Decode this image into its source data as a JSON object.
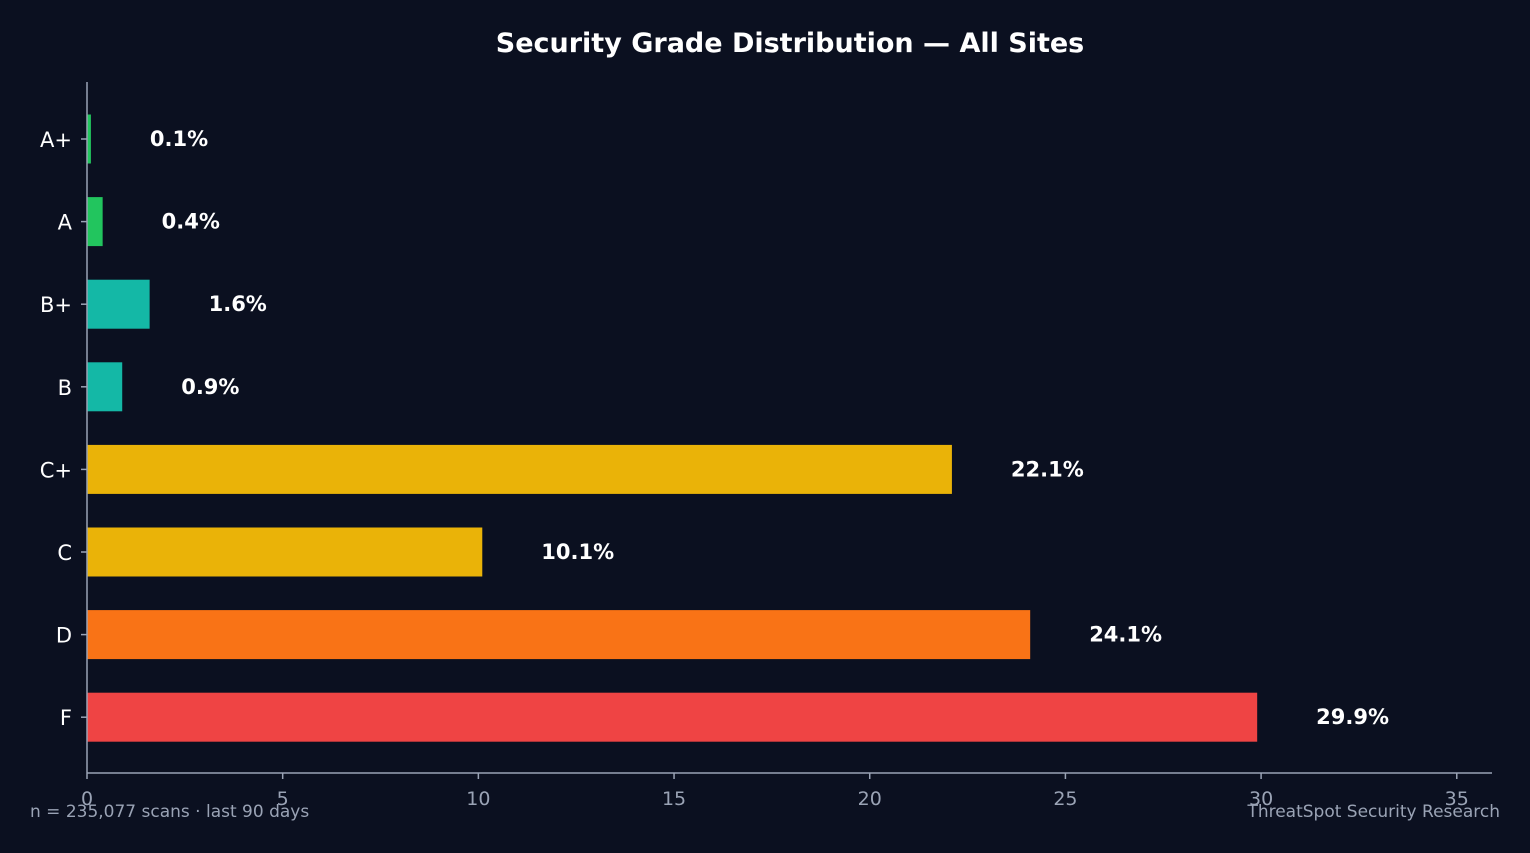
{
  "chart_data": {
    "type": "bar",
    "orientation": "horizontal",
    "title": "Security Grade Distribution — All Sites",
    "categories": [
      "A+",
      "A",
      "B+",
      "B",
      "C+",
      "C",
      "D",
      "F"
    ],
    "values": [
      0.1,
      0.4,
      1.6,
      0.9,
      22.1,
      10.1,
      24.1,
      29.9
    ],
    "value_labels": [
      "0.1%",
      "0.4%",
      "1.6%",
      "0.9%",
      "22.1%",
      "10.1%",
      "24.1%",
      "29.9%"
    ],
    "colors": [
      "#22c55e",
      "#22c55e",
      "#14b8a6",
      "#14b8a6",
      "#eab308",
      "#eab308",
      "#f97316",
      "#ef4444"
    ],
    "xlabel": "",
    "ylabel": "",
    "xlim": [
      0,
      35.9
    ],
    "xticks": [
      0,
      5,
      10,
      15,
      20,
      25,
      30,
      35
    ],
    "grid": false,
    "legend": "none"
  },
  "footer": {
    "left": "n = 235,077 scans · last 90 days",
    "right": "ThreatSpot Security Research"
  },
  "theme": {
    "background": "#0b1020",
    "axis": "#9aa3b5",
    "text": "#ffffff",
    "muted": "#9aa3b5"
  }
}
